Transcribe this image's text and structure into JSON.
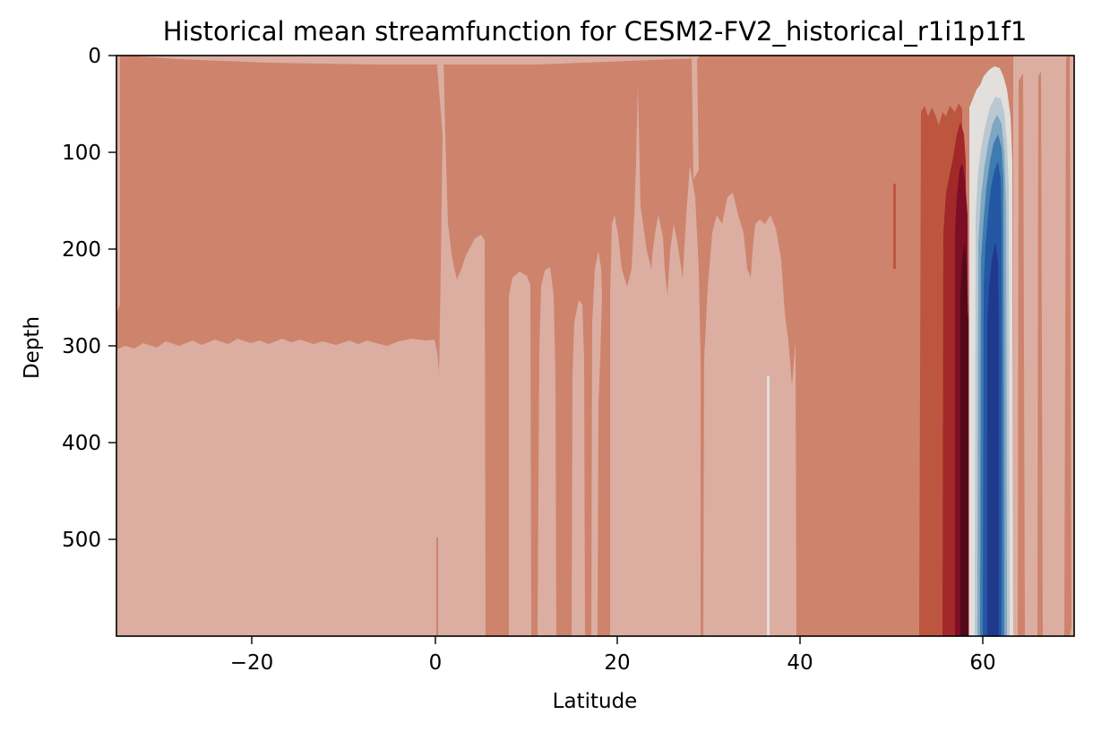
{
  "chart_data": {
    "type": "heatmap",
    "subtype": "filled-contour",
    "title": "Historical mean streamfunction for CESM2-FV2_historical_r1i1p1f1",
    "xlabel": "Latitude",
    "ylabel": "Depth",
    "xlim": [
      -35,
      70
    ],
    "ylim": [
      600,
      0
    ],
    "y_inverted": true,
    "xticks": [
      -20,
      0,
      20,
      40,
      60
    ],
    "xtick_labels": [
      "−20",
      "0",
      "20",
      "40",
      "60"
    ],
    "yticks": [
      0,
      100,
      200,
      300,
      400,
      500
    ],
    "ytick_labels": [
      "0",
      "100",
      "200",
      "300",
      "400",
      "500"
    ],
    "grid": false,
    "legend": "none",
    "colormap": "balance (diverging red-blue)",
    "colors": {
      "very_light_pink": "#ecd7d2",
      "light_pink": "#dbaea1",
      "salmon": "#ce836d",
      "rust": "#bd563e",
      "dark_red": "#a3282a",
      "maroon": "#7c0e26",
      "deep_maroon": "#550a1c",
      "near_white": "#e2dfdd",
      "pale_blue": "#b9c8d2",
      "light_blue": "#7fa6c2",
      "mid_blue": "#3e7bb0",
      "blue": "#2457a3",
      "dark_blue": "#1f3a8c"
    },
    "regions": [
      {
        "lat": [
          -35,
          0.5
        ],
        "depth": [
          0,
          300
        ],
        "level": "salmon"
      },
      {
        "lat": [
          -35,
          0.5
        ],
        "depth": [
          300,
          600
        ],
        "level": "light_pink"
      },
      {
        "lat": [
          0.5,
          40
        ],
        "depth": [
          0,
          600
        ],
        "level": "mixed salmon / light_pink vertical bands"
      },
      {
        "lat": [
          40,
          53
        ],
        "depth": [
          0,
          600
        ],
        "level": "salmon"
      },
      {
        "lat": [
          53,
          55.5
        ],
        "depth": [
          60,
          600
        ],
        "level": "rust"
      },
      {
        "lat": [
          55.5,
          57.3
        ],
        "depth": [
          80,
          600
        ],
        "level": "dark_red"
      },
      {
        "lat": [
          57.3,
          58.5
        ],
        "depth": [
          120,
          600
        ],
        "level": "maroon / deep_maroon"
      },
      {
        "lat": [
          59,
          63.5
        ],
        "depth": [
          50,
          600
        ],
        "level": "blue core (negative)"
      },
      {
        "lat": [
          63.5,
          70
        ],
        "depth": [
          0,
          600
        ],
        "level": "light_pink"
      }
    ]
  }
}
